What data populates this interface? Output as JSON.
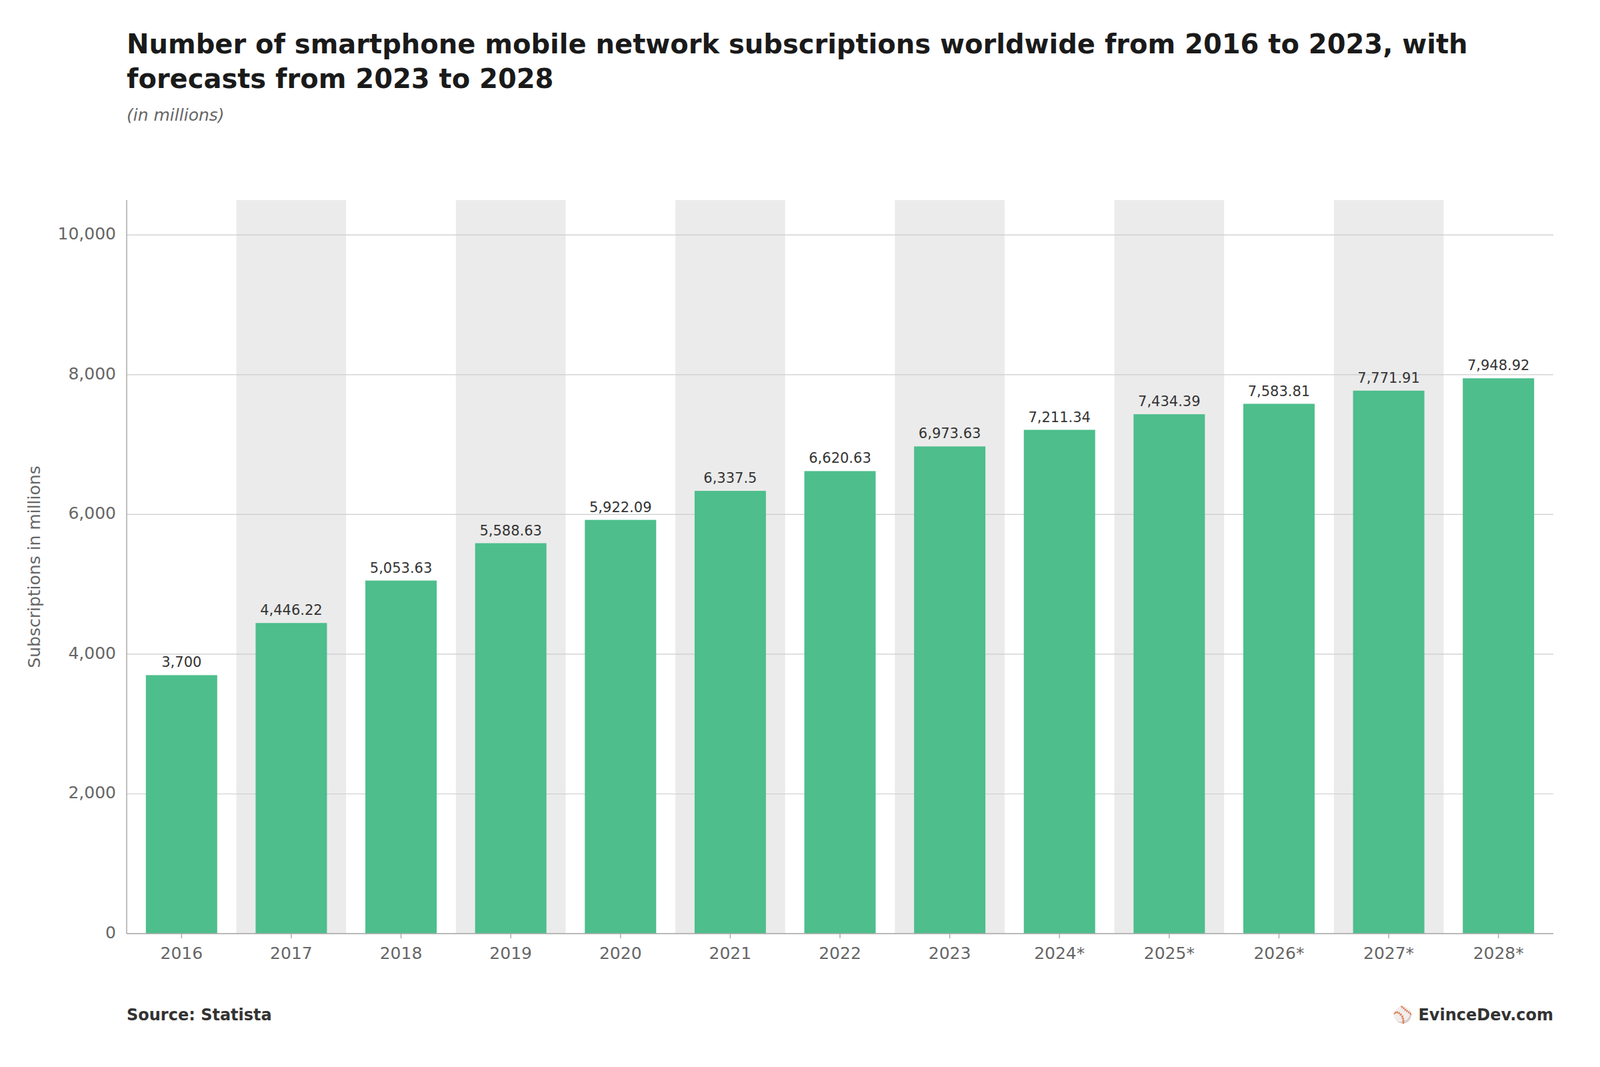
{
  "chart_data": {
    "type": "bar",
    "title": "Number of smartphone mobile network subscriptions worldwide from 2016 to 2023, with forecasts from 2023 to 2028",
    "subtitle": "(in millions)",
    "y_label": "Subscriptions in millions",
    "annotations": [
      "Source: Statista",
      "⚾  EvinceDev.com"
    ],
    "categories": [
      "2016",
      "2017",
      "2018",
      "2019",
      "2020",
      "2021",
      "2022",
      "2023",
      "2024*",
      "2025*",
      "2026*",
      "2027*",
      "2028*"
    ],
    "values": [
      3700,
      4446.22,
      5053.63,
      5588.63,
      5922.09,
      6337.5,
      6620.63,
      6973.63,
      7211.34,
      7434.39,
      7583.81,
      7771.91,
      7948.92
    ],
    "value_labels": [
      "3,700",
      "4,446.22",
      "5,053.63",
      "5,588.63",
      "5,922.09",
      "6,337.5",
      "6,620.63",
      "6,973.63",
      "7,211.34",
      "7,434.39",
      "7,583.81",
      "7,771.91",
      "7,948.92"
    ],
    "data_labels": true,
    "color": "#4dbe8c",
    "ylim": [
      0,
      10500
    ],
    "yticks": [
      0,
      {
        "value": 2000,
        "label": "2,000"
      },
      {
        "value": 4000,
        "label": "4,000"
      },
      {
        "value": 6000,
        "label": "6,000"
      },
      {
        "value": 8000,
        "label": "8,000"
      },
      {
        "value": 10000,
        "label": "10,000"
      }
    ],
    "grid": true
  }
}
